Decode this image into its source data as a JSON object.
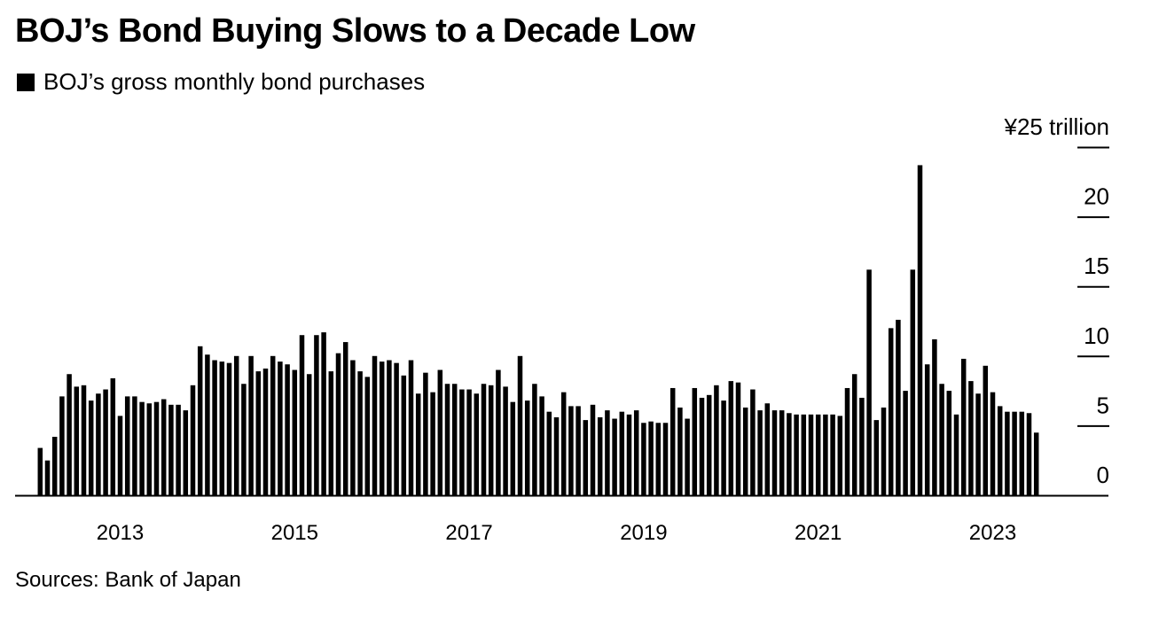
{
  "title": "BOJ’s Bond Buying Slows to a Decade Low",
  "legend": {
    "label": "BOJ’s gross monthly bond purchases",
    "color": "#000000"
  },
  "source": "Sources: Bank of Japan",
  "chart_data": {
    "type": "bar",
    "title": "BOJ’s Bond Buying Slows to a Decade Low",
    "series": [
      {
        "name": "BOJ’s gross monthly bond purchases",
        "color": "#000000",
        "start_month": "2012-02",
        "values": [
          3.4,
          2.5,
          4.2,
          7.1,
          8.7,
          7.8,
          7.9,
          6.8,
          7.3,
          7.6,
          8.4,
          5.7,
          7.1,
          7.1,
          6.7,
          6.6,
          6.7,
          6.9,
          6.5,
          6.5,
          6.1,
          7.9,
          10.7,
          10.1,
          9.7,
          9.6,
          9.5,
          10.0,
          8.0,
          10.0,
          8.9,
          9.1,
          10.0,
          9.6,
          9.4,
          9.0,
          11.5,
          8.7,
          11.5,
          11.7,
          8.9,
          10.2,
          11.0,
          9.7,
          8.9,
          8.5,
          10.0,
          9.6,
          9.7,
          9.5,
          8.6,
          9.7,
          7.3,
          8.8,
          7.4,
          9.0,
          8.0,
          8.0,
          7.6,
          7.6,
          7.3,
          8.0,
          7.9,
          9.0,
          7.8,
          6.7,
          10.0,
          6.8,
          8.0,
          7.1,
          6.0,
          5.6,
          7.4,
          6.4,
          6.4,
          5.4,
          6.5,
          5.6,
          6.1,
          5.5,
          6.0,
          5.8,
          6.1,
          5.2,
          5.3,
          5.2,
          5.2,
          7.7,
          6.3,
          5.5,
          7.7,
          7.0,
          7.2,
          7.9,
          6.8,
          8.2,
          8.1,
          6.3,
          7.6,
          6.1,
          6.6,
          6.1,
          6.1,
          5.9,
          5.8,
          5.8,
          5.8,
          5.8,
          5.8,
          5.8,
          5.7,
          7.7,
          8.7,
          7.0,
          16.2,
          5.4,
          6.3,
          12.0,
          12.6,
          7.5,
          16.2,
          23.7,
          9.4,
          11.2,
          8.0,
          7.5,
          5.8,
          9.8,
          8.2,
          7.3,
          9.3,
          7.4,
          6.4,
          6.0,
          6.0,
          6.0,
          5.9,
          4.5
        ]
      }
    ],
    "x_tick_labels": [
      "2013",
      "2015",
      "2017",
      "2019",
      "2021",
      "2023"
    ],
    "y_ticks": [
      0,
      5,
      10,
      15,
      20,
      25
    ],
    "y_tick_labels": [
      "0",
      "5",
      "10",
      "15",
      "20",
      "¥25 trillion"
    ],
    "ylim": [
      0,
      25
    ],
    "xlim": [
      "2011-10",
      "2024-06"
    ],
    "ylabel": "",
    "xlabel": "",
    "y_axis_side": "right",
    "grid": false
  }
}
